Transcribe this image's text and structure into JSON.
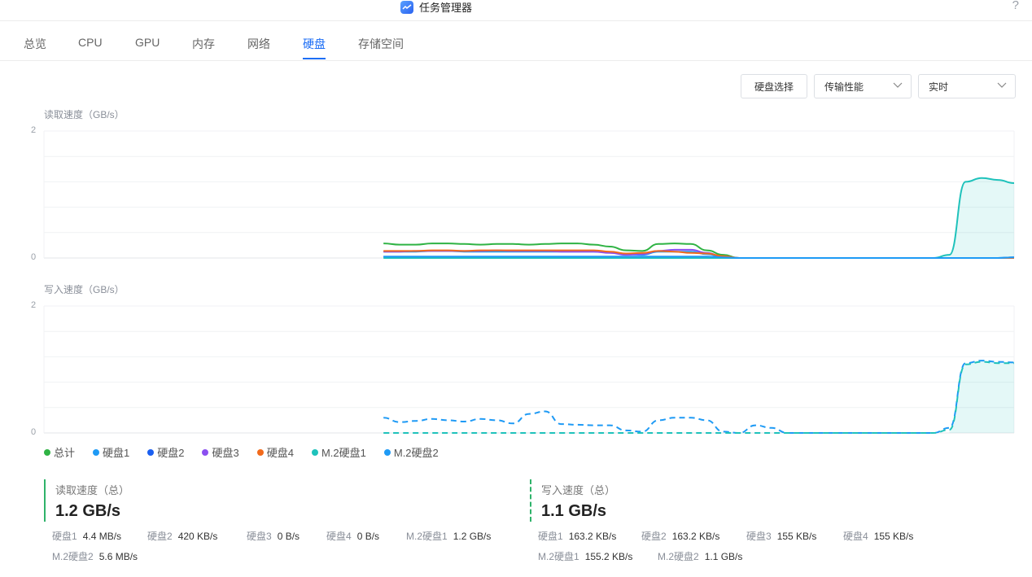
{
  "app": {
    "title": "任务管理器",
    "help": "?"
  },
  "tabs": [
    {
      "label": "总览"
    },
    {
      "label": "CPU"
    },
    {
      "label": "GPU"
    },
    {
      "label": "内存"
    },
    {
      "label": "网络"
    },
    {
      "label": "硬盘",
      "active": true
    },
    {
      "label": "存储空间"
    }
  ],
  "toolbar": {
    "disk_select": "硬盘选择",
    "metric": "传输性能",
    "range": "实时"
  },
  "charts": {
    "read": {
      "ylabel": "读取速度（GB/s）",
      "ymax": "2",
      "ymin": "0"
    },
    "write": {
      "ylabel": "写入速度（GB/s）",
      "ymax": "2",
      "ymin": "0"
    }
  },
  "legend": [
    {
      "label": "总计",
      "color": "#2fb344"
    },
    {
      "label": "硬盘1",
      "color": "#1e9af5"
    },
    {
      "label": "硬盘2",
      "color": "#1a5ff0"
    },
    {
      "label": "硬盘3",
      "color": "#8b4ff0"
    },
    {
      "label": "硬盘4",
      "color": "#f26a1b"
    },
    {
      "label": "M.2硬盘1",
      "color": "#1fc2bb"
    },
    {
      "label": "M.2硬盘2",
      "color": "#1e9af5"
    }
  ],
  "summary": {
    "read": {
      "label": "读取速度（总）",
      "value": "1.2 GB/s",
      "items": [
        {
          "k": "硬盘1",
          "v": "4.4 MB/s"
        },
        {
          "k": "硬盘2",
          "v": "420 KB/s"
        },
        {
          "k": "硬盘3",
          "v": "0 B/s"
        },
        {
          "k": "硬盘4",
          "v": "0 B/s"
        },
        {
          "k": "M.2硬盘1",
          "v": "1.2 GB/s"
        },
        {
          "k": "M.2硬盘2",
          "v": "5.6 MB/s"
        }
      ]
    },
    "write": {
      "label": "写入速度（总）",
      "value": "1.1 GB/s",
      "items": [
        {
          "k": "硬盘1",
          "v": "163.2 KB/s"
        },
        {
          "k": "硬盘2",
          "v": "163.2 KB/s"
        },
        {
          "k": "硬盘3",
          "v": "155 KB/s"
        },
        {
          "k": "硬盘4",
          "v": "155 KB/s"
        },
        {
          "k": "M.2硬盘1",
          "v": "155.2 KB/s"
        },
        {
          "k": "M.2硬盘2",
          "v": "1.1 GB/s"
        }
      ]
    }
  },
  "chart_data": [
    {
      "type": "line",
      "ylabel": "读取速度（GB/s）",
      "ylim": [
        0,
        2
      ],
      "grid": true,
      "x": [
        0,
        1,
        2,
        3,
        4,
        5,
        6,
        7,
        8,
        9,
        10,
        11,
        12,
        13,
        14,
        15,
        16,
        17,
        18,
        19,
        20,
        21,
        22,
        23,
        24,
        25,
        26,
        27,
        28,
        29,
        30,
        31,
        32,
        33,
        34,
        35,
        36,
        37,
        38,
        39,
        40,
        41,
        42,
        43,
        44,
        45,
        46,
        47,
        48,
        49,
        50,
        51,
        52,
        53,
        54,
        55,
        56,
        57,
        58,
        59,
        60
      ],
      "series": [
        {
          "name": "总计",
          "color": "#2fb344",
          "values": [
            null,
            null,
            null,
            null,
            null,
            null,
            null,
            null,
            null,
            null,
            null,
            null,
            null,
            null,
            null,
            null,
            null,
            null,
            null,
            null,
            null,
            0.23,
            0.21,
            0.21,
            0.23,
            0.23,
            0.22,
            0.21,
            0.22,
            0.22,
            0.21,
            0.22,
            0.23,
            0.23,
            0.21,
            0.18,
            0.12,
            0.11,
            0.22,
            0.23,
            0.22,
            0.12,
            0.05,
            0,
            0,
            0,
            0,
            0,
            0,
            0,
            0,
            0,
            0,
            0,
            0,
            0,
            0,
            0,
            0,
            0,
            0
          ]
        },
        {
          "name": "硬盘1",
          "color": "#1e9af5",
          "values": [
            null,
            null,
            null,
            null,
            null,
            null,
            null,
            null,
            null,
            null,
            null,
            null,
            null,
            null,
            null,
            null,
            null,
            null,
            null,
            null,
            null,
            0.1,
            0.1,
            0.1,
            0.11,
            0.11,
            0.1,
            0.1,
            0.1,
            0.1,
            0.1,
            0.1,
            0.1,
            0.1,
            0.1,
            0.09,
            0.06,
            0.05,
            0.1,
            0.1,
            0.1,
            0.06,
            0.02,
            0,
            0,
            0,
            0,
            0,
            0,
            0,
            0,
            0,
            0,
            0,
            0,
            0,
            0,
            0,
            0,
            0,
            0.01
          ]
        },
        {
          "name": "硬盘2",
          "color": "#1a5ff0",
          "values": [
            null,
            null,
            null,
            null,
            null,
            null,
            null,
            null,
            null,
            null,
            null,
            null,
            null,
            null,
            null,
            null,
            null,
            null,
            null,
            null,
            null,
            0.02,
            0.02,
            0.02,
            0.02,
            0.02,
            0.02,
            0.02,
            0.02,
            0.02,
            0.02,
            0.02,
            0.02,
            0.02,
            0.02,
            0.02,
            0.02,
            0.02,
            0.02,
            0.02,
            0.02,
            0.02,
            0.01,
            0,
            0,
            0,
            0,
            0,
            0,
            0,
            0,
            0,
            0,
            0,
            0,
            0,
            0,
            0,
            0,
            0,
            0.01
          ]
        },
        {
          "name": "硬盘3",
          "color": "#8b4ff0",
          "values": [
            null,
            null,
            null,
            null,
            null,
            null,
            null,
            null,
            null,
            null,
            null,
            null,
            null,
            null,
            null,
            null,
            null,
            null,
            null,
            null,
            null,
            0.1,
            0.1,
            0.11,
            0.11,
            0.11,
            0.11,
            0.11,
            0.12,
            0.11,
            0.11,
            0.11,
            0.1,
            0.1,
            0.1,
            0.08,
            0.05,
            0.06,
            0.11,
            0.13,
            0.13,
            0.08,
            0.02,
            0,
            0,
            0,
            0,
            0,
            0,
            0,
            0,
            0,
            0,
            0,
            0,
            0,
            0,
            0,
            0,
            0,
            0
          ]
        },
        {
          "name": "硬盘4",
          "color": "#f26a1b",
          "values": [
            null,
            null,
            null,
            null,
            null,
            null,
            null,
            null,
            null,
            null,
            null,
            null,
            null,
            null,
            null,
            null,
            null,
            null,
            null,
            null,
            null,
            0.11,
            0.11,
            0.11,
            0.12,
            0.12,
            0.11,
            0.12,
            0.12,
            0.12,
            0.12,
            0.12,
            0.12,
            0.12,
            0.12,
            0.1,
            0.07,
            0.08,
            0.11,
            0.1,
            0.08,
            0.07,
            0.03,
            0,
            0,
            0,
            0,
            0,
            0,
            0,
            0,
            0,
            0,
            0,
            0,
            0,
            0,
            0,
            0,
            0,
            0
          ]
        },
        {
          "name": "M.2硬盘1",
          "color": "#1fc2bb",
          "values": [
            null,
            null,
            null,
            null,
            null,
            null,
            null,
            null,
            null,
            null,
            null,
            null,
            null,
            null,
            null,
            null,
            null,
            null,
            null,
            null,
            null,
            0,
            0,
            0,
            0,
            0,
            0,
            0,
            0,
            0,
            0,
            0,
            0,
            0,
            0,
            0,
            0,
            0,
            0,
            0,
            0,
            0,
            0,
            0,
            0,
            0,
            0,
            0,
            0,
            0,
            0,
            0,
            0,
            0,
            0,
            0,
            0.05,
            1.2,
            1.26,
            1.23,
            1.18
          ]
        },
        {
          "name": "M.2硬盘2",
          "color": "#1e9af5",
          "values": [
            null,
            null,
            null,
            null,
            null,
            null,
            null,
            null,
            null,
            null,
            null,
            null,
            null,
            null,
            null,
            null,
            null,
            null,
            null,
            null,
            null,
            0.02,
            0.02,
            0.02,
            0.02,
            0.02,
            0.02,
            0.02,
            0.02,
            0.02,
            0.02,
            0.02,
            0.02,
            0.02,
            0.02,
            0.02,
            0.02,
            0.02,
            0.02,
            0.02,
            0.02,
            0.02,
            0.01,
            0,
            0,
            0,
            0,
            0,
            0,
            0,
            0,
            0,
            0,
            0,
            0,
            0,
            0,
            0,
            0,
            0,
            0.01
          ]
        }
      ]
    },
    {
      "type": "line",
      "ylabel": "写入速度（GB/s）",
      "ylim": [
        0,
        2
      ],
      "grid": true,
      "x": [
        0,
        1,
        2,
        3,
        4,
        5,
        6,
        7,
        8,
        9,
        10,
        11,
        12,
        13,
        14,
        15,
        16,
        17,
        18,
        19,
        20,
        21,
        22,
        23,
        24,
        25,
        26,
        27,
        28,
        29,
        30,
        31,
        32,
        33,
        34,
        35,
        36,
        37,
        38,
        39,
        40,
        41,
        42,
        43,
        44,
        45,
        46,
        47,
        48,
        49,
        50,
        51,
        52,
        53,
        54,
        55,
        56,
        57,
        58,
        59,
        60
      ],
      "series": [
        {
          "name": "硬盘1",
          "color": "#1e9af5",
          "values": [
            null,
            null,
            null,
            null,
            null,
            null,
            null,
            null,
            null,
            null,
            null,
            null,
            null,
            null,
            null,
            null,
            null,
            null,
            null,
            null,
            null,
            0.24,
            0.17,
            0.19,
            0.22,
            0.2,
            0.18,
            0.22,
            0.2,
            0.15,
            0.3,
            0.34,
            0.14,
            0.13,
            0.12,
            0.12,
            0.04,
            0.02,
            0.2,
            0.24,
            0.24,
            0.2,
            0.02,
            0,
            0.12,
            0.08,
            0,
            0,
            0,
            0,
            0,
            0,
            0,
            0,
            0,
            0,
            0.08,
            1.1,
            1.14,
            1.12,
            1.11
          ]
        },
        {
          "name": "M.2硬盘1",
          "color": "#1fc2bb",
          "values": [
            null,
            null,
            null,
            null,
            null,
            null,
            null,
            null,
            null,
            null,
            null,
            null,
            null,
            null,
            null,
            null,
            null,
            null,
            null,
            null,
            null,
            0,
            0,
            0,
            0,
            0,
            0,
            0,
            0,
            0,
            0,
            0,
            0,
            0,
            0,
            0,
            0,
            0,
            0,
            0,
            0,
            0,
            0,
            0,
            0,
            0,
            0,
            0,
            0,
            0,
            0,
            0,
            0,
            0,
            0,
            0,
            0.05,
            1.08,
            1.12,
            1.1,
            1.1
          ]
        }
      ]
    }
  ]
}
